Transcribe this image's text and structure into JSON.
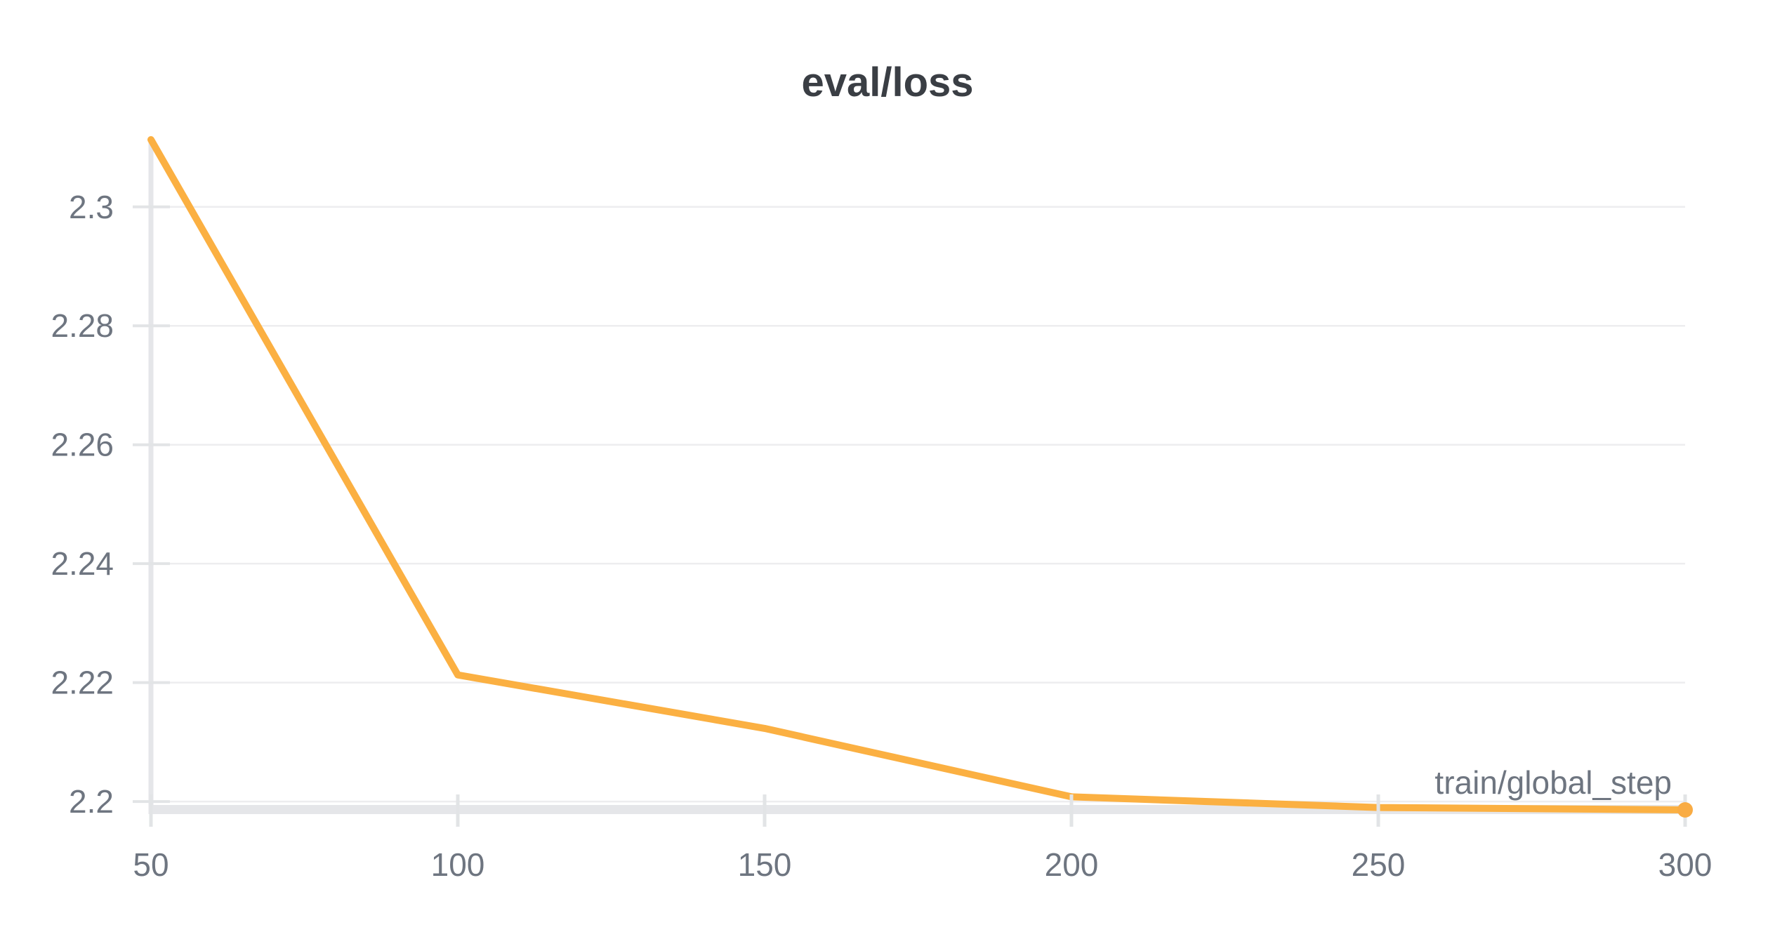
{
  "chart": {
    "title": "eval/loss",
    "xlabel": "train/global_step"
  },
  "chart_data": {
    "type": "line",
    "title": "eval/loss",
    "xlabel": "train/global_step",
    "ylabel": "",
    "x": [
      50,
      100,
      150,
      200,
      250,
      300
    ],
    "series": [
      {
        "name": "eval/loss",
        "values": [
          2.3113,
          2.2213,
          2.2123,
          2.2008,
          2.199,
          2.1986
        ]
      }
    ],
    "x_ticks": [
      50,
      100,
      150,
      200,
      250,
      300
    ],
    "x_tick_labels": [
      "50",
      "100",
      "150",
      "200",
      "250",
      "300"
    ],
    "y_ticks": [
      2.2,
      2.22,
      2.24,
      2.26,
      2.28,
      2.3
    ],
    "y_tick_labels": [
      "2.2",
      "2.22",
      "2.24",
      "2.26",
      "2.28",
      "2.3"
    ],
    "xlim": [
      50,
      300
    ],
    "ylim": [
      2.1986,
      2.3113
    ],
    "grid": "horizontal-only",
    "legend": "none",
    "end_marker": true
  },
  "colors": {
    "line": "#FBB042",
    "end_dot": "#F9AC44",
    "grid": "#EDEDEF",
    "axis": "#E5E6E9",
    "tick": "#E2E4E6",
    "tick_label": "#6E7580",
    "title": "#3A3E44",
    "background": "#FFFFFF"
  }
}
